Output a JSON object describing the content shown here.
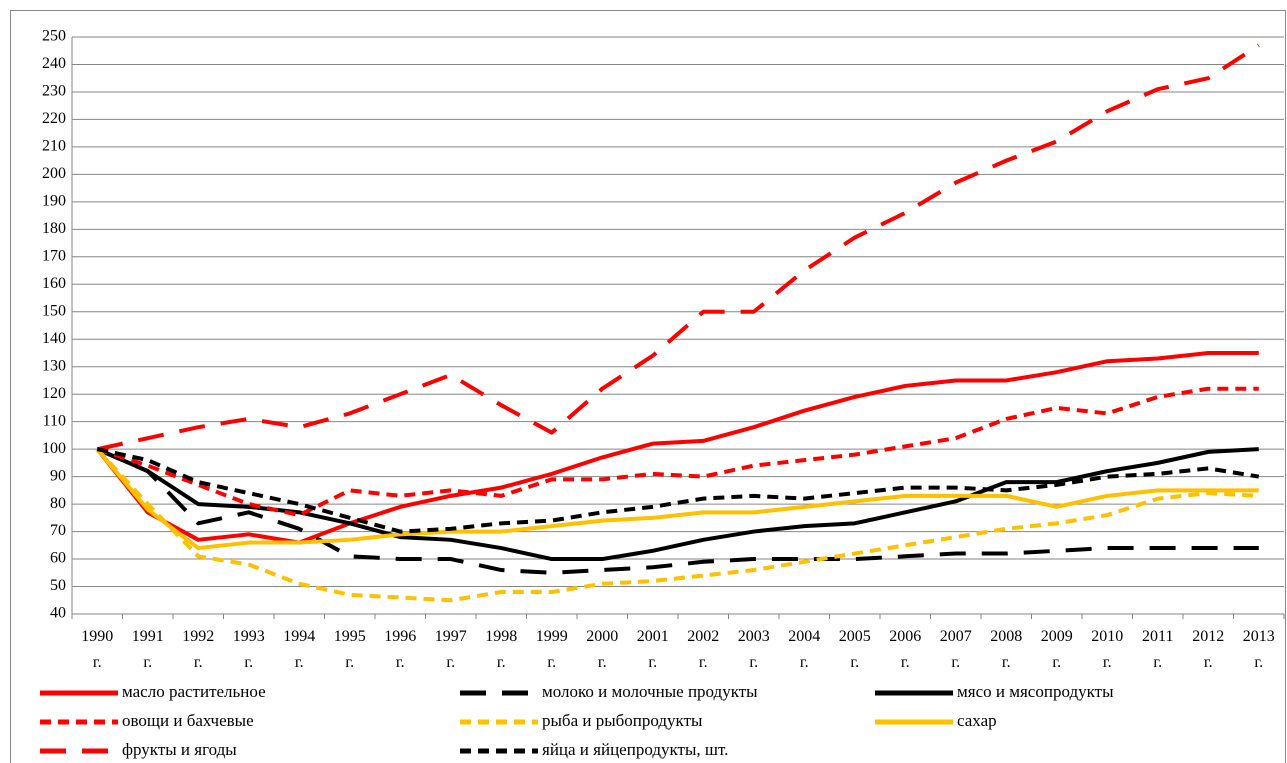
{
  "chart_data": {
    "type": "line",
    "categories": [
      "1990 г.",
      "1991 г.",
      "1992 г.",
      "1993 г.",
      "1994 г.",
      "1995 г.",
      "1996 г.",
      "1997 г.",
      "1998 г.",
      "1999 г.",
      "2000 г.",
      "2001 г.",
      "2002 г.",
      "2003 г.",
      "2004 г.",
      "2005 г.",
      "2006 г.",
      "2007 г.",
      "2008 г.",
      "2009 г.",
      "2010 г.",
      "2011 г.",
      "2012 г.",
      "2013 г."
    ],
    "series": [
      {
        "name": "масло растительное",
        "color": "#ff0000",
        "dash": "solid",
        "values": [
          100,
          77,
          67,
          69,
          66,
          73,
          79,
          83,
          86,
          91,
          97,
          102,
          103,
          108,
          114,
          119,
          123,
          125,
          125,
          128,
          132,
          133,
          135,
          135
        ]
      },
      {
        "name": "молоко и молочные продукты",
        "color": "#000000",
        "dash": "long",
        "values": [
          100,
          92,
          73,
          77,
          71,
          61,
          60,
          60,
          56,
          55,
          56,
          57,
          59,
          60,
          60,
          60,
          61,
          62,
          62,
          63,
          64,
          64,
          64,
          64
        ]
      },
      {
        "name": "мясо и мясопродукты",
        "color": "#000000",
        "dash": "solid",
        "values": [
          100,
          92,
          80,
          79,
          77,
          73,
          68,
          67,
          64,
          60,
          60,
          63,
          67,
          70,
          72,
          73,
          77,
          81,
          88,
          88,
          92,
          95,
          99,
          100
        ]
      },
      {
        "name": "овощи и бахчевые",
        "color": "#ff0000",
        "dash": "short",
        "values": [
          100,
          94,
          87,
          80,
          76,
          85,
          83,
          85,
          83,
          89,
          89,
          91,
          90,
          94,
          96,
          98,
          101,
          104,
          111,
          115,
          113,
          119,
          122,
          122
        ]
      },
      {
        "name": "рыба и рыбопродукты",
        "color": "#ffc000",
        "dash": "short",
        "values": [
          100,
          80,
          61,
          58,
          51,
          47,
          46,
          45,
          48,
          48,
          51,
          52,
          54,
          56,
          59,
          62,
          65,
          68,
          71,
          73,
          76,
          82,
          84,
          83
        ]
      },
      {
        "name": "сахар",
        "color": "#ffc000",
        "dash": "solid",
        "values": [
          100,
          78,
          64,
          66,
          66,
          67,
          69,
          70,
          70,
          72,
          74,
          75,
          77,
          77,
          79,
          81,
          83,
          83,
          83,
          79,
          83,
          85,
          85,
          85
        ]
      },
      {
        "name": "фрукты и ягоды",
        "color": "#ff0000",
        "dash": "long",
        "values": [
          100,
          104,
          108,
          111,
          108,
          113,
          120,
          127,
          116,
          106,
          122,
          134,
          150,
          150,
          165,
          177,
          186,
          197,
          205,
          212,
          223,
          231,
          235,
          247
        ]
      },
      {
        "name": "яйца и яйцепродукты, шт.",
        "color": "#000000",
        "dash": "short",
        "values": [
          100,
          96,
          88,
          84,
          80,
          75,
          70,
          71,
          73,
          74,
          77,
          79,
          82,
          83,
          82,
          84,
          86,
          86,
          85,
          87,
          90,
          91,
          93,
          90
        ]
      }
    ],
    "ylim": [
      40,
      250
    ],
    "yticks": [
      40,
      50,
      60,
      70,
      80,
      90,
      100,
      110,
      120,
      130,
      140,
      150,
      160,
      170,
      180,
      190,
      200,
      210,
      220,
      230,
      240,
      250
    ],
    "grid": true
  }
}
